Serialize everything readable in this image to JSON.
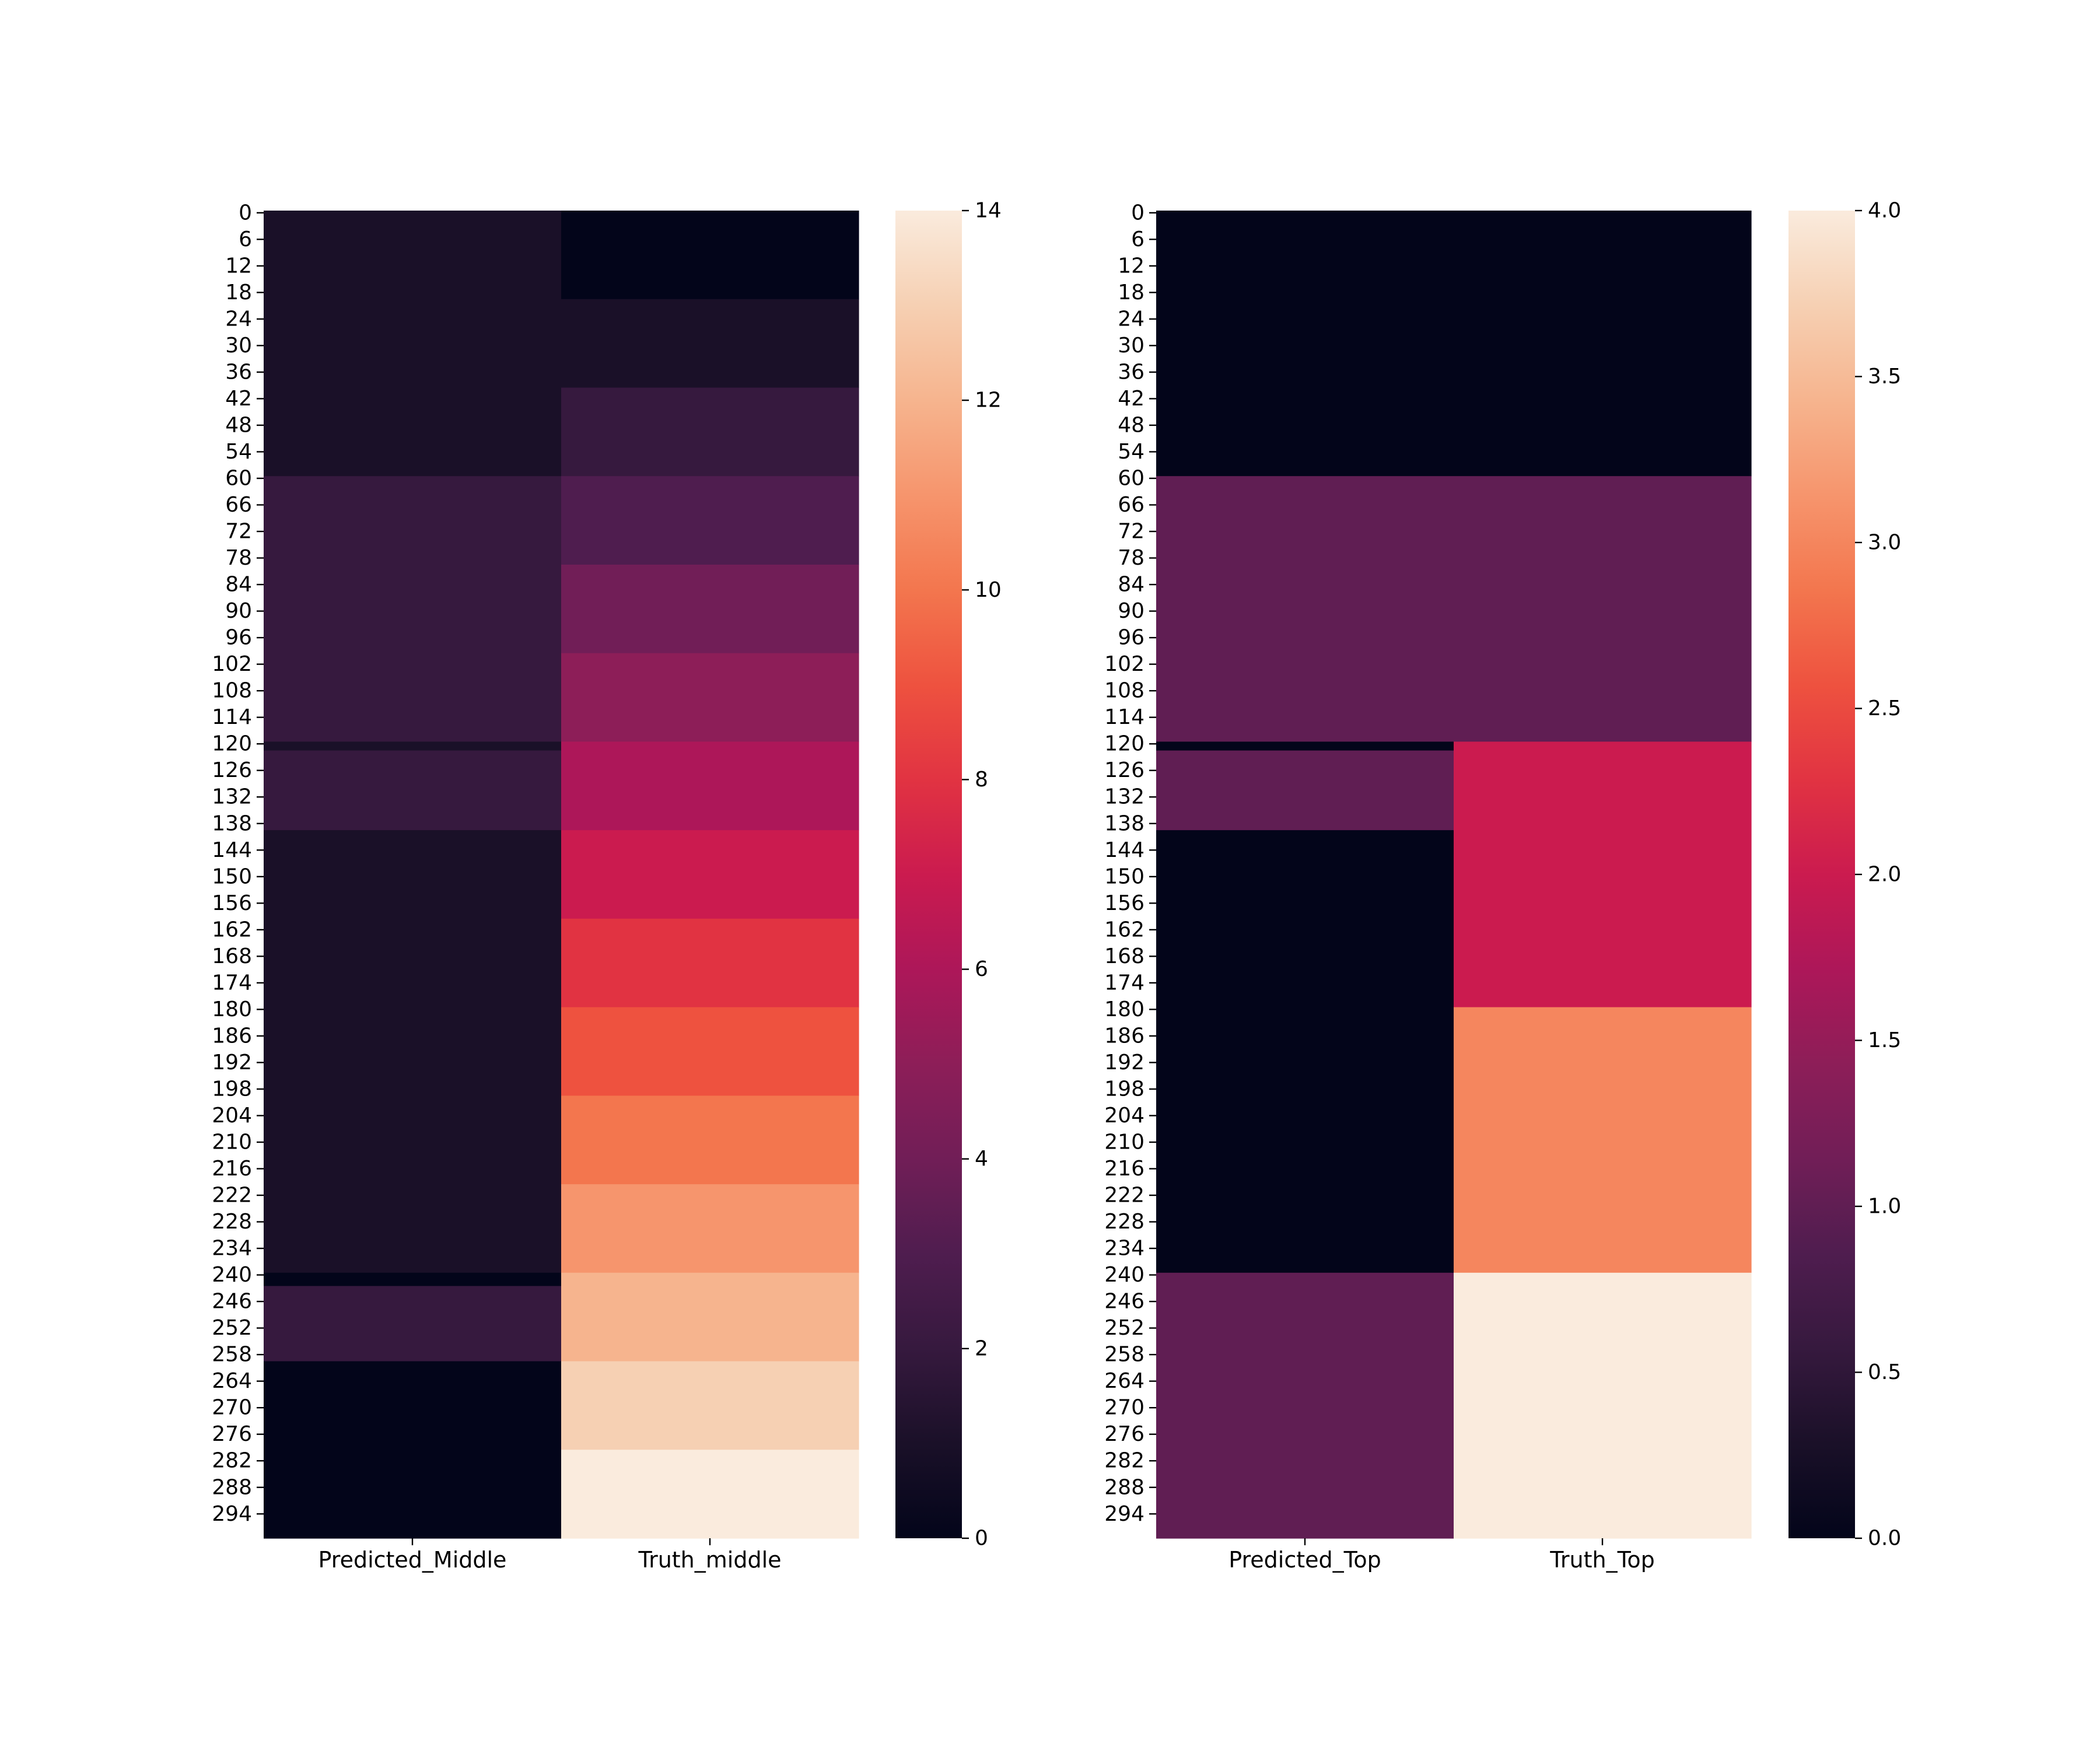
{
  "chart_data": [
    {
      "type": "heatmap",
      "title": "",
      "xlabel": "",
      "ylabel": "",
      "columns": [
        "Predicted_Middle",
        "Truth_middle"
      ],
      "row_count": 300,
      "row_tick_labels": [
        "0",
        "6",
        "12",
        "18",
        "24",
        "30",
        "36",
        "42",
        "48",
        "54",
        "60",
        "66",
        "72",
        "78",
        "84",
        "90",
        "96",
        "102",
        "108",
        "114",
        "120",
        "126",
        "132",
        "138",
        "144",
        "150",
        "156",
        "162",
        "168",
        "174",
        "180",
        "186",
        "192",
        "198",
        "204",
        "210",
        "216",
        "222",
        "228",
        "234",
        "240",
        "246",
        "252",
        "258",
        "264",
        "270",
        "276",
        "282",
        "288",
        "294"
      ],
      "cells": [
        {
          "column": "Predicted_Middle",
          "segments": [
            {
              "start": 0,
              "end": 60,
              "value": 1
            },
            {
              "start": 60,
              "end": 120,
              "value": 2
            },
            {
              "start": 120,
              "end": 122,
              "value": 1
            },
            {
              "start": 122,
              "end": 140,
              "value": 2
            },
            {
              "start": 140,
              "end": 240,
              "value": 1
            },
            {
              "start": 240,
              "end": 243,
              "value": 0
            },
            {
              "start": 243,
              "end": 260,
              "value": 2
            },
            {
              "start": 260,
              "end": 300,
              "value": 0
            }
          ]
        },
        {
          "column": "Truth_middle",
          "segments": [
            {
              "start": 0,
              "end": 20,
              "value": 0
            },
            {
              "start": 20,
              "end": 40,
              "value": 1
            },
            {
              "start": 40,
              "end": 60,
              "value": 2
            },
            {
              "start": 60,
              "end": 80,
              "value": 3
            },
            {
              "start": 80,
              "end": 100,
              "value": 4
            },
            {
              "start": 100,
              "end": 120,
              "value": 5
            },
            {
              "start": 120,
              "end": 140,
              "value": 6
            },
            {
              "start": 140,
              "end": 160,
              "value": 7
            },
            {
              "start": 160,
              "end": 180,
              "value": 8
            },
            {
              "start": 180,
              "end": 200,
              "value": 9
            },
            {
              "start": 200,
              "end": 220,
              "value": 10
            },
            {
              "start": 220,
              "end": 240,
              "value": 11
            },
            {
              "start": 240,
              "end": 260,
              "value": 12
            },
            {
              "start": 260,
              "end": 280,
              "value": 13
            },
            {
              "start": 280,
              "end": 300,
              "value": 14
            }
          ]
        }
      ],
      "colorbar": {
        "min": 0,
        "max": 14,
        "ticks": [
          "0",
          "2",
          "4",
          "6",
          "8",
          "10",
          "12",
          "14"
        ]
      },
      "colormap": "rocket"
    },
    {
      "type": "heatmap",
      "title": "",
      "xlabel": "",
      "ylabel": "",
      "columns": [
        "Predicted_Top",
        "Truth_Top"
      ],
      "row_count": 300,
      "row_tick_labels": [
        "0",
        "6",
        "12",
        "18",
        "24",
        "30",
        "36",
        "42",
        "48",
        "54",
        "60",
        "66",
        "72",
        "78",
        "84",
        "90",
        "96",
        "102",
        "108",
        "114",
        "120",
        "126",
        "132",
        "138",
        "144",
        "150",
        "156",
        "162",
        "168",
        "174",
        "180",
        "186",
        "192",
        "198",
        "204",
        "210",
        "216",
        "222",
        "228",
        "234",
        "240",
        "246",
        "252",
        "258",
        "264",
        "270",
        "276",
        "282",
        "288",
        "294"
      ],
      "cells": [
        {
          "column": "Predicted_Top",
          "segments": [
            {
              "start": 0,
              "end": 60,
              "value": 0
            },
            {
              "start": 60,
              "end": 120,
              "value": 1
            },
            {
              "start": 120,
              "end": 122,
              "value": 0
            },
            {
              "start": 122,
              "end": 140,
              "value": 1
            },
            {
              "start": 140,
              "end": 240,
              "value": 0
            },
            {
              "start": 240,
              "end": 300,
              "value": 1
            }
          ]
        },
        {
          "column": "Truth_Top",
          "segments": [
            {
              "start": 0,
              "end": 60,
              "value": 0
            },
            {
              "start": 60,
              "end": 120,
              "value": 1
            },
            {
              "start": 120,
              "end": 180,
              "value": 2
            },
            {
              "start": 180,
              "end": 240,
              "value": 3
            },
            {
              "start": 240,
              "end": 300,
              "value": 4
            }
          ]
        }
      ],
      "colorbar": {
        "min": 0,
        "max": 4,
        "ticks": [
          "0.0",
          "0.5",
          "1.0",
          "1.5",
          "2.0",
          "2.5",
          "3.0",
          "3.5",
          "4.0"
        ]
      },
      "colormap": "rocket"
    }
  ]
}
